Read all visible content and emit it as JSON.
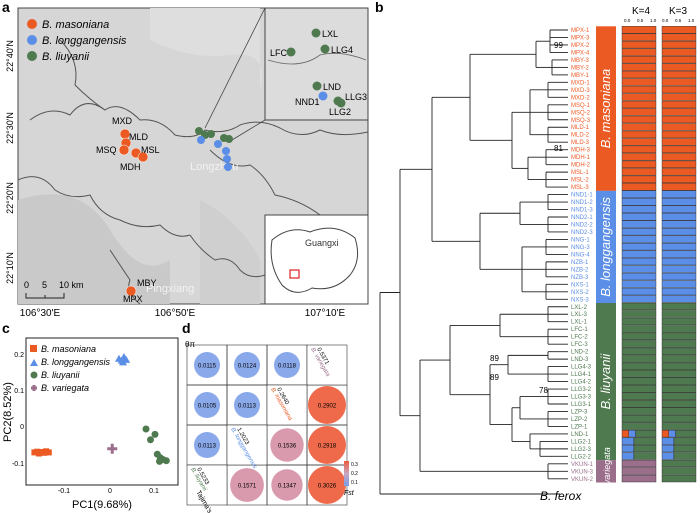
{
  "panels": {
    "a": "a",
    "b": "b",
    "c": "c",
    "d": "d"
  },
  "colors": {
    "masoniana": "#ec5a24",
    "longgangensis": "#5b8ee6",
    "liuyanii": "#4f7a4f",
    "variegata": "#9b6f8c",
    "map_bg": "#d4d4d4"
  },
  "map": {
    "legend": [
      "B. masoniana",
      "B. longgangensis",
      "B. liuyanii"
    ],
    "lat_ticks": [
      "22°40'N",
      "22°30'N",
      "22°20'N",
      "22°10'N"
    ],
    "lon_ticks": [
      "106°30'E",
      "106°50'E",
      "107°10'E"
    ],
    "scale": [
      "0",
      "5",
      "10 km"
    ],
    "towns": [
      "Longzhou",
      "Pingxiang",
      "Guangxi"
    ],
    "sites_main": [
      "MXD",
      "MLD",
      "MSQ",
      "MSL",
      "MDH",
      "MBY",
      "MPX"
    ],
    "sites_inset": [
      "LXL",
      "LFC",
      "LLG4",
      "LND",
      "NND1",
      "LLG3",
      "LLG2"
    ]
  },
  "tree": {
    "outgroup": "B. ferox",
    "bootstrap": [
      "99",
      "81",
      "89",
      "89",
      "78"
    ],
    "k_labels": [
      "K=4",
      "K=3"
    ],
    "axis_ticks": [
      "0.0",
      "0.5",
      "1.0"
    ],
    "species_bars": [
      "B. masoniana",
      "B. longgangensis",
      "B. liuyanii",
      "B. variegata"
    ],
    "tips": [
      "MPX-1",
      "MPX-3",
      "MPX-2",
      "MPX-4",
      "MBY-3",
      "MBY-2",
      "MBY-1",
      "MXD-1",
      "MXD-3",
      "MXD-2",
      "MSQ-1",
      "MSQ-2",
      "MSQ-3",
      "MLD-1",
      "MLD-2",
      "MLD-3",
      "MDH-3",
      "MDH-1",
      "MDH-2",
      "MSL-1",
      "MSL-2",
      "MSL-3",
      "NND1-1",
      "NND1-2",
      "NND1-3",
      "NND2-1",
      "NND2-2",
      "NND2-3",
      "NNG-1",
      "NNG-3",
      "NNG-4",
      "NZB-1",
      "NZB-2",
      "NZB-3",
      "NXS-1",
      "NXS-2",
      "NXS-3",
      "LXL-2",
      "LXL-3",
      "LXL-1",
      "LFC-1",
      "LFC-2",
      "LFC-3",
      "LND-2",
      "LND-3",
      "LLG4-3",
      "LLG4-1",
      "LLG4-2",
      "LLG3-2",
      "LLG3-3",
      "LLG3-1",
      "LZP-3",
      "LZP-2",
      "LZP-1",
      "LND-1",
      "LLG2-1",
      "LLG2-3",
      "LLG2-2",
      "VKUN-1",
      "VKUN-3",
      "VKUN-2"
    ]
  },
  "pca": {
    "legend": [
      "B. masoniana",
      "B. longgangensis",
      "B. liuyanii",
      "B. variegata"
    ],
    "xlabel": "PC1(9.68%)",
    "ylabel": "PC2(8.52%)",
    "xticks": [
      "-0.1",
      "0",
      "0.1"
    ],
    "yticks": [
      "0.2",
      "0.1",
      "0",
      "-0.1"
    ]
  },
  "matrix": {
    "pi_label": "θπ",
    "tajima": "Tajima's D",
    "fst_label": "Fst",
    "legend_ticks": [
      "0.3",
      "0.2",
      "0.1"
    ],
    "diag_tajima": [
      "0.5233",
      "1.2023",
      "0.2640",
      "0.5371"
    ],
    "diag_names": [
      "B. liuyanii",
      "B. longgangensis",
      "B. masoniana",
      "B. variegata"
    ],
    "cells": {
      "r1": [
        "0.0115",
        "0.0124",
        "0.0118"
      ],
      "r2": [
        "0.0105",
        "0.0113",
        "0.2902"
      ],
      "r3": [
        "0.0113",
        "0.1536",
        "0.2918"
      ],
      "r4": [
        "0.1571",
        "0.1347",
        "0.3026"
      ]
    }
  }
}
